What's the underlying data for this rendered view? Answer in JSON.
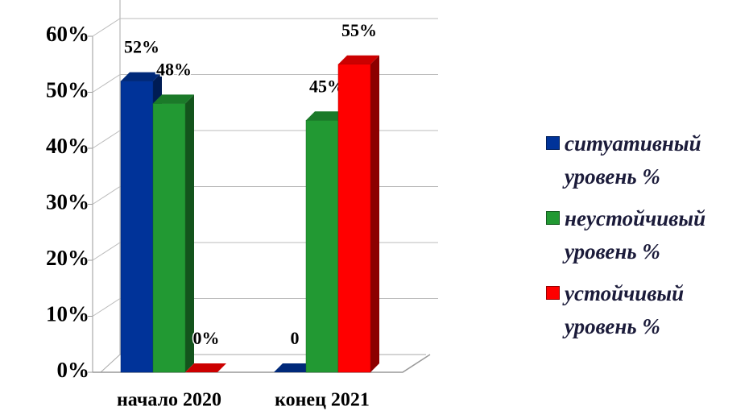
{
  "chart_data": {
    "type": "bar3d",
    "categories": [
      "начало 2020",
      "конец 2021"
    ],
    "series": [
      {
        "name": "ситуативный уровень %",
        "color": "#003399",
        "values": [
          52,
          0
        ],
        "value_labels": [
          "52%",
          "0"
        ]
      },
      {
        "name": "неустойчивый уровень %",
        "color": "#229933",
        "values": [
          48,
          45
        ],
        "value_labels": [
          "48%",
          "45%"
        ]
      },
      {
        "name": "устойчивый уровень %",
        "color": "#ff0000",
        "values": [
          0,
          55
        ],
        "value_labels": [
          "0%",
          "55%"
        ]
      }
    ],
    "ylim": [
      0,
      60
    ],
    "yticks": [
      {
        "value": 0,
        "label": "0%"
      },
      {
        "value": 10,
        "label": "10%"
      },
      {
        "value": 20,
        "label": "20%"
      },
      {
        "value": 30,
        "label": "30%"
      },
      {
        "value": 40,
        "label": "40%"
      },
      {
        "value": 50,
        "label": "50%"
      },
      {
        "value": 60,
        "label": "60%"
      }
    ],
    "grid": true,
    "legend": "right"
  }
}
